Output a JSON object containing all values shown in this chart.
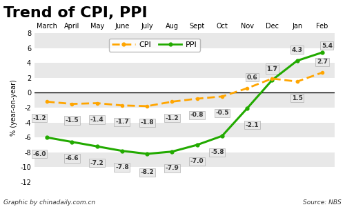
{
  "title": "Trend of CPI, PPI",
  "months": [
    "March",
    "April",
    "May",
    "June",
    "July",
    "Aug",
    "Sept",
    "Oct",
    "Nov",
    "Dec",
    "Jan",
    "Feb"
  ],
  "cpi_values": [
    -1.2,
    -1.5,
    -1.4,
    -1.7,
    -1.8,
    -1.2,
    -0.8,
    -0.5,
    0.6,
    1.9,
    1.5,
    2.7
  ],
  "ppi_values": [
    -6.0,
    -6.6,
    -7.2,
    -7.8,
    -8.2,
    -7.9,
    -7.0,
    -5.8,
    -2.1,
    1.7,
    4.3,
    5.4
  ],
  "cpi_color": "#FFA500",
  "ppi_color": "#22AA00",
  "ylabel": "% (year-on-year)",
  "ylim": [
    -12,
    8
  ],
  "yticks": [
    -12,
    -10,
    -8,
    -6,
    -4,
    -2,
    0,
    2,
    4,
    6,
    8
  ],
  "plot_bg": "#d8d8d8",
  "title_bg": "#ffffff",
  "footer_left": "Graphic by chinadaily.com.cn",
  "footer_right": "Source: NBS",
  "title_fontsize": 16,
  "axis_fontsize": 7
}
